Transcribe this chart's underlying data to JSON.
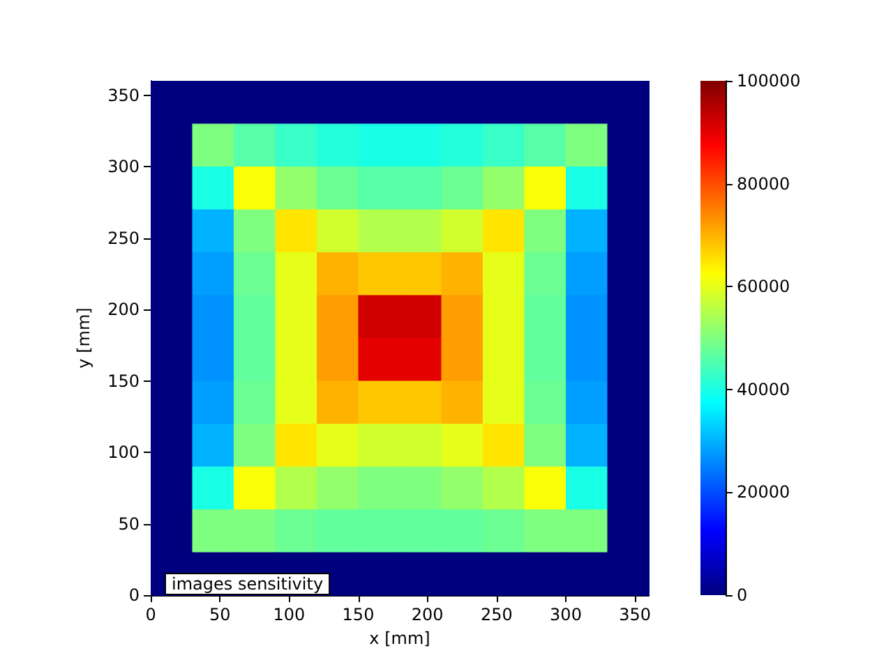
{
  "chart_data": {
    "type": "heatmap",
    "xlabel": "x [mm]",
    "ylabel": "y [mm]",
    "xlim": [
      0,
      360
    ],
    "ylim": [
      0,
      360
    ],
    "xticks": [
      0,
      50,
      100,
      150,
      200,
      250,
      300,
      350
    ],
    "yticks": [
      0,
      50,
      100,
      150,
      200,
      250,
      300,
      350
    ],
    "clim": [
      0,
      100000
    ],
    "cticks": [
      0,
      20000,
      40000,
      60000,
      80000,
      100000
    ],
    "cells": [
      [
        0,
        0,
        0,
        0,
        0,
        0,
        0,
        0,
        0,
        0,
        0,
        0
      ],
      [
        0,
        50000,
        46000,
        43000,
        41000,
        40000,
        40000,
        41000,
        43000,
        46000,
        50000,
        0
      ],
      [
        0,
        40000,
        62000,
        52000,
        48000,
        46000,
        46000,
        48000,
        52000,
        62000,
        40000,
        0
      ],
      [
        0,
        30000,
        50000,
        65000,
        58000,
        55000,
        55000,
        58000,
        65000,
        50000,
        30000,
        0
      ],
      [
        0,
        28000,
        48000,
        60000,
        70000,
        68000,
        68000,
        70000,
        60000,
        48000,
        28000,
        0
      ],
      [
        0,
        27000,
        47000,
        60000,
        72000,
        92000,
        92000,
        72000,
        60000,
        47000,
        27000,
        0
      ],
      [
        0,
        27000,
        47000,
        60000,
        72000,
        90000,
        90000,
        72000,
        60000,
        47000,
        27000,
        0
      ],
      [
        0,
        28000,
        48000,
        60000,
        70000,
        68000,
        68000,
        70000,
        60000,
        48000,
        28000,
        0
      ],
      [
        0,
        30000,
        50000,
        65000,
        60000,
        58000,
        58000,
        60000,
        65000,
        50000,
        30000,
        0
      ],
      [
        0,
        40000,
        62000,
        55000,
        52000,
        50000,
        50000,
        52000,
        55000,
        62000,
        40000,
        0
      ],
      [
        0,
        50000,
        50000,
        48000,
        47000,
        47000,
        47000,
        47000,
        48000,
        50000,
        50000,
        0
      ],
      [
        0,
        0,
        0,
        0,
        0,
        0,
        0,
        0,
        0,
        0,
        0,
        0
      ]
    ],
    "annotations": [
      "images sensitivity"
    ]
  }
}
